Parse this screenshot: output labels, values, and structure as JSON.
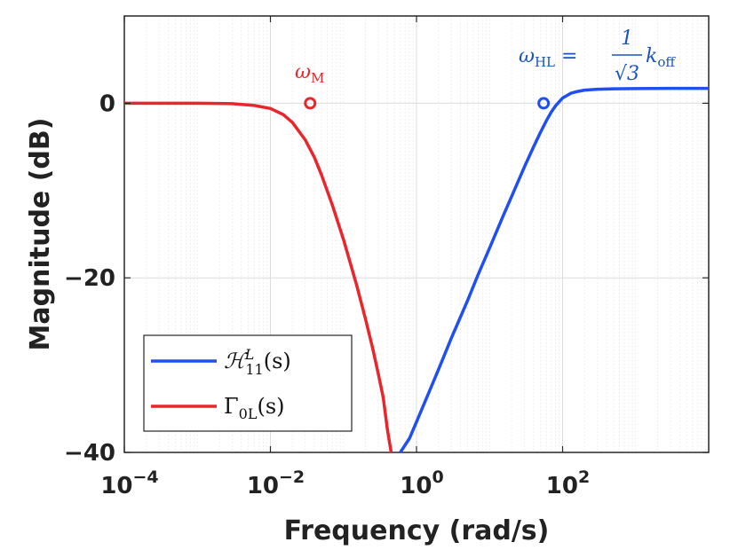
{
  "chart_data": {
    "type": "line",
    "xscale": "log",
    "xlim": [
      0.0001,
      10000
    ],
    "ylim": [
      -40,
      10
    ],
    "xlabel": "Frequency (rad/s)",
    "ylabel": "Magnitude (dB)",
    "xticks": [
      {
        "value": 0.0001,
        "base": "10",
        "exp": "−4"
      },
      {
        "value": 0.01,
        "base": "10",
        "exp": "−2"
      },
      {
        "value": 1,
        "base": "10",
        "exp": "0"
      },
      {
        "value": 100,
        "base": "10",
        "exp": "2"
      }
    ],
    "yticks": [
      {
        "value": 0,
        "label": "0"
      },
      {
        "value": -20,
        "label": "−20"
      },
      {
        "value": -40,
        "label": "−40"
      }
    ],
    "grid": true,
    "legend_position": "bottom-left",
    "series": [
      {
        "name": "H11L(s)",
        "legend_label": {
          "main": "ℋ",
          "sup": "L",
          "sub": "11",
          "tail": "(s)"
        },
        "color": "#1f4ff0",
        "x": [
          0.6,
          0.8,
          1,
          1.5,
          2,
          3,
          5,
          7,
          10,
          15,
          20,
          30,
          40,
          50,
          60,
          70,
          80,
          100,
          130,
          160,
          200,
          300,
          500,
          1000,
          3000,
          10000
        ],
        "y": [
          -40.9,
          -38.4,
          -36.5,
          -33.0,
          -30.5,
          -26.9,
          -22.6,
          -19.6,
          -16.6,
          -13.1,
          -10.7,
          -7.3,
          -5.0,
          -3.3,
          -2.0,
          -1.0,
          -0.3,
          0.6,
          1.15,
          1.35,
          1.5,
          1.6,
          1.65,
          1.68,
          1.7,
          1.7
        ]
      },
      {
        "name": "Γ0L(s)",
        "legend_label": {
          "main": "Γ",
          "sub": "0L",
          "tail": "(s)"
        },
        "color": "#e8262b",
        "x": [
          0.0001,
          0.001,
          0.003,
          0.006,
          0.01,
          0.015,
          0.02,
          0.03,
          0.04,
          0.05,
          0.07,
          0.1,
          0.15,
          0.2,
          0.25,
          0.3,
          0.35,
          0.4,
          0.45
        ],
        "y": [
          0,
          0,
          -0.05,
          -0.25,
          -0.6,
          -1.3,
          -2.2,
          -4.2,
          -6.2,
          -8.2,
          -11.6,
          -15.6,
          -20.7,
          -24.7,
          -28.0,
          -31.0,
          -33.7,
          -37.4,
          -40.6
        ]
      }
    ],
    "markers": [
      {
        "x": 0.035,
        "y": 0,
        "color": "#e8262b"
      },
      {
        "x": 55,
        "y": 0,
        "color": "#1f4ff0"
      }
    ],
    "annotations": [
      {
        "name": "omega-m",
        "text": "ω",
        "sub": "M",
        "color": "#e8262b"
      },
      {
        "name": "omega-hl",
        "text": "ω",
        "sub": "HL",
        "rest": " = ",
        "frac_num": "1",
        "frac_den": "√3",
        "tail": "k",
        "tail_sub": "off",
        "color": "#1a53c4"
      }
    ]
  }
}
